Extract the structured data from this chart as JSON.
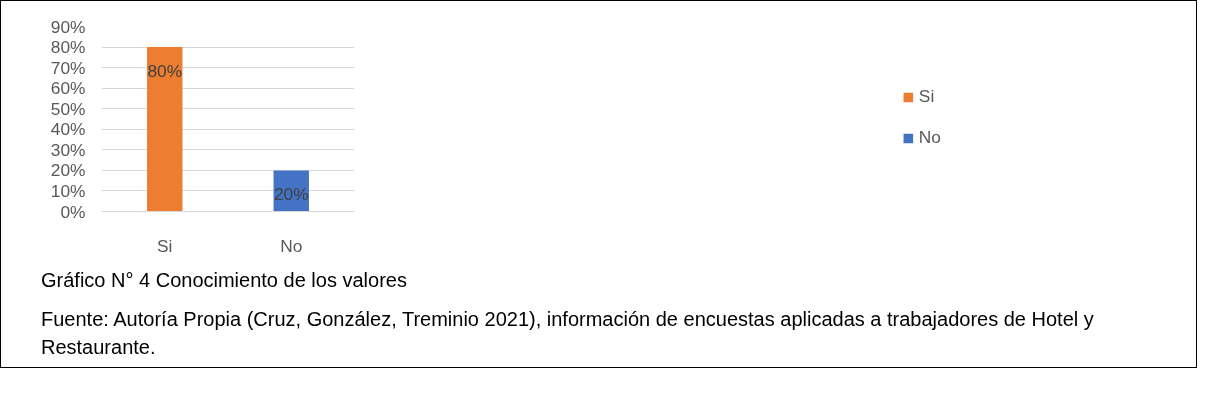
{
  "chart_data": {
    "type": "bar",
    "categories": [
      "Si",
      "No"
    ],
    "series": [
      {
        "name": "Si",
        "color": "#ed7d31",
        "values": [
          80,
          null
        ],
        "value_labels": [
          "80%",
          null
        ]
      },
      {
        "name": "No",
        "color": "#4472c4",
        "values": [
          null,
          20
        ],
        "value_labels": [
          null,
          "20%"
        ]
      }
    ],
    "ylim": [
      0,
      90
    ],
    "yticks": [
      {
        "value": 0,
        "label": "0%"
      },
      {
        "value": 10,
        "label": "10%"
      },
      {
        "value": 20,
        "label": "20%"
      },
      {
        "value": 30,
        "label": "30%"
      },
      {
        "value": 40,
        "label": "40%"
      },
      {
        "value": 50,
        "label": "50%"
      },
      {
        "value": 60,
        "label": "60%"
      },
      {
        "value": 70,
        "label": "70%"
      },
      {
        "value": 80,
        "label": "80%"
      },
      {
        "value": 90,
        "label": "90%"
      }
    ],
    "grid": "y",
    "legend": "right",
    "annotations": [
      "Gráfico N° 4 Conocimiento de los valores",
      "Fuente: Autoría Propia (Cruz, González, Treminio  2021), información de encuestas aplicadas a trabajadores de Hotel y Restaurante."
    ]
  }
}
